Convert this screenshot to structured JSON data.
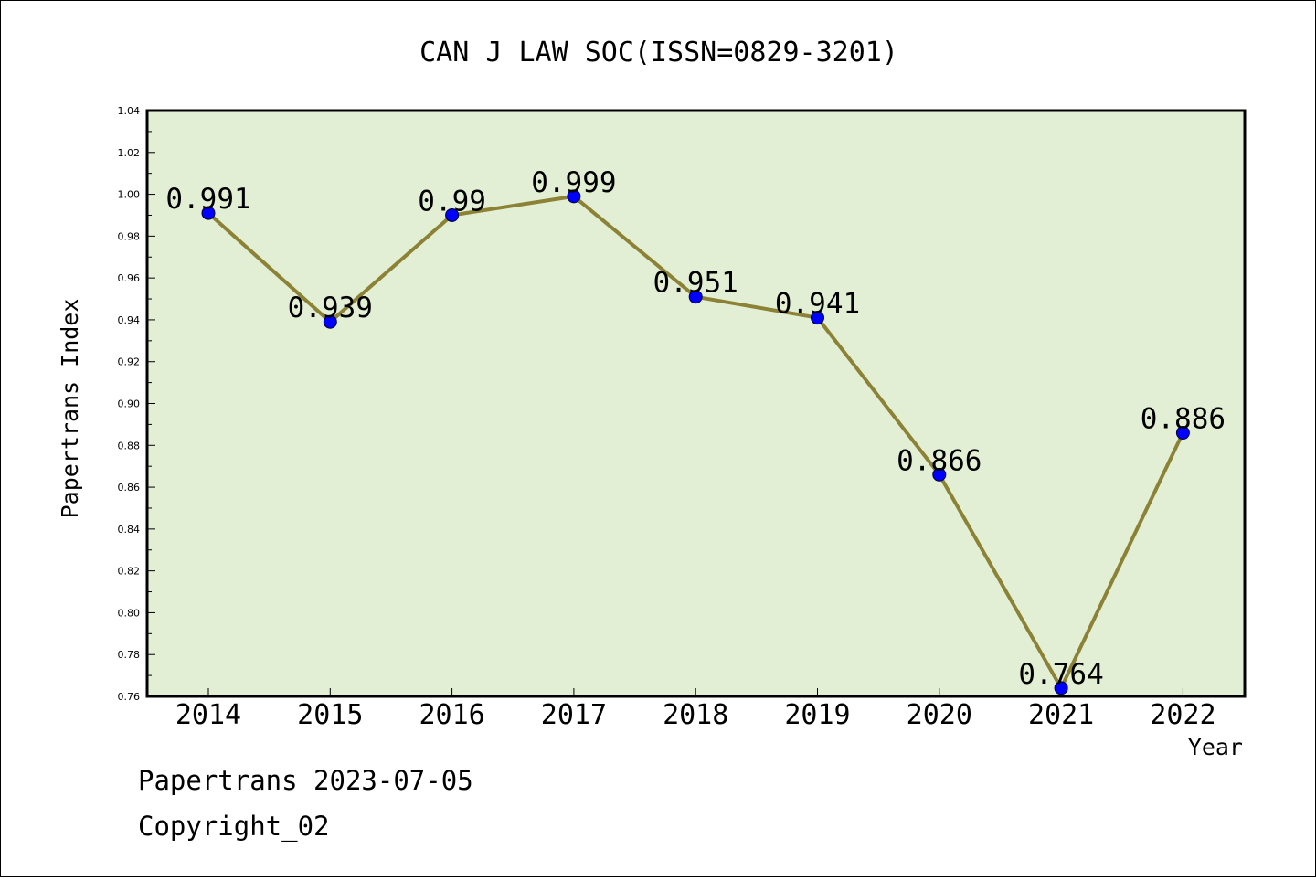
{
  "colors": {
    "plot_background": "#e2efd4",
    "line": "#8b8236",
    "marker": "#0000ff",
    "frame": "#000000"
  },
  "chart_data": {
    "type": "line",
    "title": "CAN J LAW SOC(ISSN=0829-3201)",
    "xlabel": "Year",
    "ylabel": "Papertrans Index",
    "categories": [
      "2014",
      "2015",
      "2016",
      "2017",
      "2018",
      "2019",
      "2020",
      "2021",
      "2022"
    ],
    "series": [
      {
        "values": [
          0.991,
          0.939,
          0.99,
          0.999,
          0.951,
          0.941,
          0.866,
          0.764,
          0.886
        ]
      }
    ],
    "data_labels": [
      "0.991",
      "0.939",
      "0.99",
      "0.999",
      "0.951",
      "0.941",
      "0.866",
      "0.764",
      "0.886"
    ],
    "ylim": [
      0.76,
      1.04
    ],
    "yticks": [
      "0.76",
      "0.78",
      "0.80",
      "0.82",
      "0.84",
      "0.86",
      "0.88",
      "0.90",
      "0.92",
      "0.94",
      "0.96",
      "0.98",
      "1.00",
      "1.02",
      "1.04"
    ],
    "grid": false,
    "legend": "none"
  },
  "footer": {
    "line1": "Papertrans 2023-07-05",
    "line2": "Copyright_02"
  }
}
